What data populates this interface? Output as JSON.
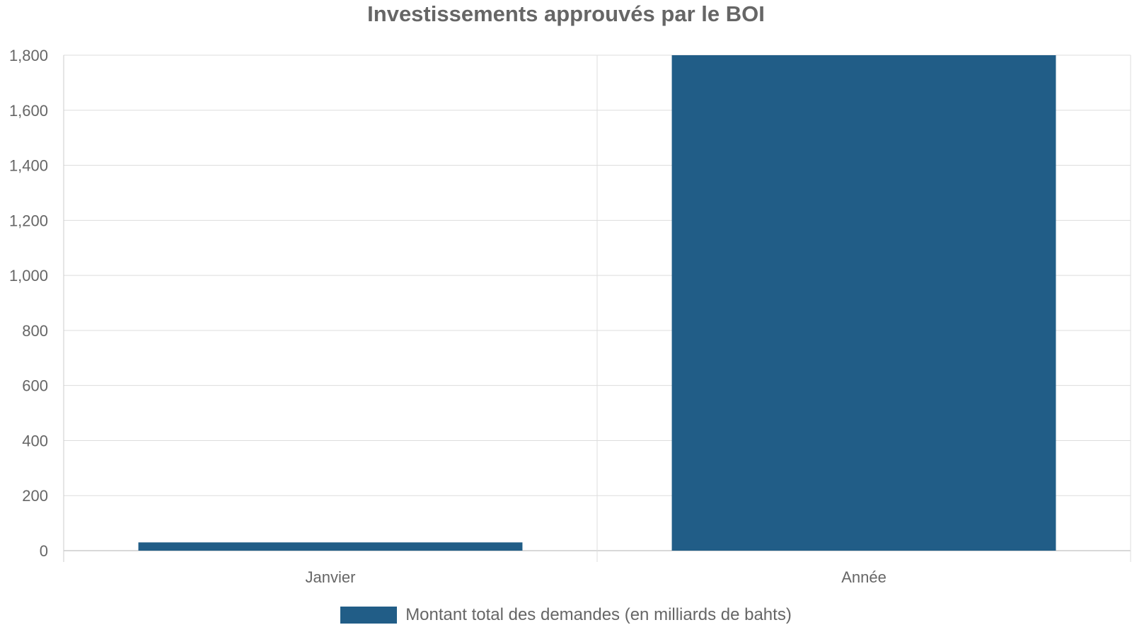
{
  "chart_data": {
    "type": "bar",
    "title": "Investissements approuvés par le BOI",
    "categories": [
      "Janvier",
      "Année"
    ],
    "series": [
      {
        "name": "Montant total des demandes (en milliards de bahts)",
        "values": [
          30,
          1800
        ]
      }
    ],
    "xlabel": "",
    "ylabel": "",
    "ylim": [
      0,
      1800
    ],
    "yticks": [
      0,
      200,
      400,
      600,
      800,
      1000,
      1200,
      1400,
      1600,
      1800
    ],
    "ytick_labels": [
      "0",
      "200",
      "400",
      "600",
      "800",
      "1,000",
      "1,200",
      "1,400",
      "1,600",
      "1,800"
    ],
    "grid": true,
    "legend_position": "bottom",
    "colors": {
      "bar": "#215d87",
      "grid": "#dddddd",
      "axis": "#cccccc",
      "text": "#666666"
    }
  }
}
